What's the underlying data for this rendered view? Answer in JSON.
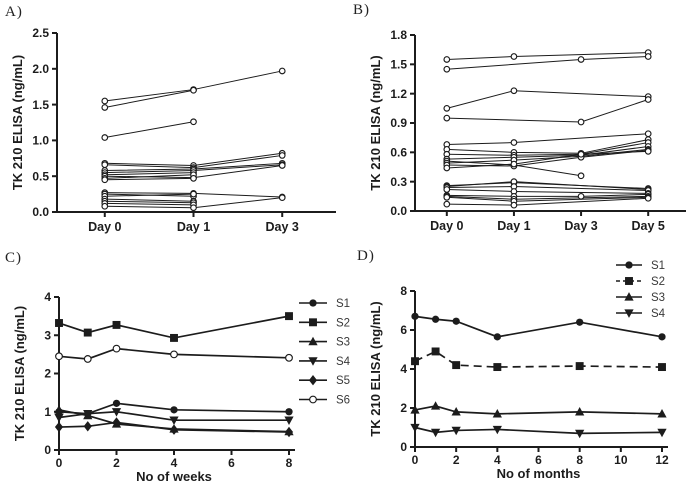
{
  "figure": {
    "colors": {
      "ink": "#1c1c1c",
      "legend_text": "#3a3a3a",
      "open_marker_fill": "#ffffff"
    }
  },
  "chart_data": [
    {
      "panel_label": "A)",
      "type": "line",
      "title": "",
      "ylabel": "TK 210 ELISA (ng/mL)",
      "xlabel": "",
      "ylim": [
        0,
        2.5
      ],
      "ytick_vals": [
        0,
        0.5,
        1.0,
        1.5,
        2.0,
        2.5
      ],
      "ytick_labels": [
        "0.0",
        "0.5",
        "1.0",
        "1.5",
        "2.0",
        "2.5"
      ],
      "x_type": "categorical",
      "categories": [
        "Day 0",
        "Day 1",
        "Day 3"
      ],
      "marker_default": "open-circle",
      "legend": false,
      "series": [
        {
          "values": [
            1.55,
            1.71,
            1.97
          ]
        },
        {
          "values": [
            1.46,
            1.7,
            null
          ]
        },
        {
          "values": [
            1.04,
            1.26,
            null
          ]
        },
        {
          "values": [
            0.68,
            0.65,
            0.82
          ]
        },
        {
          "values": [
            0.66,
            0.62,
            0.79
          ]
        },
        {
          "values": [
            0.58,
            0.6,
            0.68
          ]
        },
        {
          "values": [
            0.55,
            0.58,
            0.66
          ]
        },
        {
          "values": [
            0.52,
            0.55,
            null
          ]
        },
        {
          "values": [
            0.5,
            0.48,
            0.65
          ]
        },
        {
          "values": [
            0.47,
            0.52,
            null
          ]
        },
        {
          "values": [
            0.45,
            0.47,
            null
          ]
        },
        {
          "values": [
            0.27,
            0.26,
            0.21
          ]
        },
        {
          "values": [
            0.25,
            0.22,
            null
          ]
        },
        {
          "values": [
            0.22,
            0.25,
            null
          ]
        },
        {
          "values": [
            0.18,
            0.15,
            null
          ]
        },
        {
          "values": [
            0.15,
            0.13,
            null
          ]
        },
        {
          "values": [
            0.12,
            0.1,
            null
          ]
        },
        {
          "values": [
            0.08,
            0.06,
            0.2
          ]
        }
      ]
    },
    {
      "panel_label": "B)",
      "type": "line",
      "title": "",
      "ylabel": "TK 210 ELISA (ng/mL)",
      "xlabel": "",
      "ylim": [
        0,
        1.8
      ],
      "ytick_vals": [
        0,
        0.3,
        0.6,
        0.9,
        1.2,
        1.5,
        1.8
      ],
      "ytick_labels": [
        "0.0",
        "0.3",
        "0.6",
        "0.9",
        "1.2",
        "1.5",
        "1.8"
      ],
      "x_type": "categorical",
      "categories": [
        "Day 0",
        "Day 1",
        "Day 3",
        "Day 5"
      ],
      "marker_default": "open-circle",
      "legend": false,
      "series": [
        {
          "values": [
            1.55,
            1.58,
            null,
            1.62
          ]
        },
        {
          "values": [
            1.45,
            null,
            1.55,
            1.58
          ]
        },
        {
          "values": [
            1.05,
            1.23,
            null,
            1.17
          ]
        },
        {
          "values": [
            0.95,
            null,
            0.91,
            1.14
          ]
        },
        {
          "values": [
            0.68,
            0.7,
            null,
            0.79
          ]
        },
        {
          "values": [
            0.63,
            0.6,
            0.59,
            0.73
          ]
        },
        {
          "values": [
            0.58,
            0.57,
            0.58,
            0.7
          ]
        },
        {
          "values": [
            0.53,
            0.55,
            0.57,
            0.66
          ]
        },
        {
          "values": [
            0.51,
            0.47,
            0.36,
            null
          ]
        },
        {
          "values": [
            0.49,
            0.52,
            0.56,
            0.63
          ]
        },
        {
          "values": [
            0.47,
            0.46,
            0.55,
            0.62
          ]
        },
        {
          "values": [
            0.44,
            0.48,
            0.58,
            0.61
          ]
        },
        {
          "values": [
            0.26,
            0.29,
            null,
            0.23
          ]
        },
        {
          "values": [
            0.25,
            0.3,
            null,
            0.22
          ]
        },
        {
          "values": [
            0.24,
            0.25,
            null,
            0.21
          ]
        },
        {
          "values": [
            0.22,
            0.2,
            null,
            0.18
          ]
        },
        {
          "values": [
            0.16,
            0.15,
            0.15,
            0.17
          ]
        },
        {
          "values": [
            0.15,
            0.12,
            null,
            0.15
          ]
        },
        {
          "values": [
            0.14,
            0.1,
            null,
            0.14
          ]
        },
        {
          "values": [
            0.07,
            0.06,
            null,
            0.13
          ]
        }
      ]
    },
    {
      "panel_label": "C)",
      "type": "line",
      "title": "",
      "ylabel": "TK 210 ELISA (ng/mL)",
      "xlabel": "No of weeks",
      "ylim": [
        0,
        4
      ],
      "ytick_vals": [
        0,
        1,
        2,
        3,
        4
      ],
      "ytick_labels": [
        "0",
        "1",
        "2",
        "3",
        "4"
      ],
      "x_type": "numeric",
      "xlim": [
        0,
        8
      ],
      "xtick_vals": [
        0,
        2,
        4,
        6,
        8
      ],
      "xtick_labels": [
        "0",
        "2",
        "4",
        "6",
        "8"
      ],
      "legend": true,
      "legend_position": "right",
      "series": [
        {
          "name": "S1",
          "marker": "filled-circle",
          "x": [
            0,
            1,
            2,
            4,
            8
          ],
          "values": [
            1.0,
            0.95,
            1.22,
            1.05,
            1.0
          ]
        },
        {
          "name": "S2",
          "marker": "filled-square",
          "x": [
            0,
            1,
            2,
            4,
            8
          ],
          "values": [
            3.32,
            3.07,
            3.27,
            2.93,
            3.5
          ]
        },
        {
          "name": "S3",
          "marker": "filled-triangle-up",
          "x": [
            0,
            1,
            2,
            4,
            8
          ],
          "values": [
            1.05,
            0.9,
            0.68,
            0.55,
            0.48
          ]
        },
        {
          "name": "S4",
          "marker": "filled-triangle-down",
          "x": [
            0,
            1,
            2,
            4,
            8
          ],
          "values": [
            0.85,
            0.95,
            1.0,
            0.78,
            0.78
          ]
        },
        {
          "name": "S5",
          "marker": "filled-diamond",
          "x": [
            0,
            1,
            2,
            4,
            8
          ],
          "values": [
            0.6,
            0.62,
            0.72,
            0.53,
            0.47
          ]
        },
        {
          "name": "S6",
          "marker": "open-circle",
          "x": [
            0,
            1,
            2,
            4,
            8
          ],
          "values": [
            2.45,
            2.38,
            2.65,
            2.5,
            2.41
          ]
        }
      ]
    },
    {
      "panel_label": "D)",
      "type": "line",
      "title": "",
      "ylabel": "TK 210 ELISA (ng/mL)",
      "xlabel": "No of months",
      "ylim": [
        0,
        8
      ],
      "ytick_vals": [
        0,
        2,
        4,
        6,
        8
      ],
      "ytick_labels": [
        "0",
        "2",
        "4",
        "6",
        "8"
      ],
      "x_type": "numeric",
      "xlim": [
        0,
        12
      ],
      "xtick_vals": [
        0,
        2,
        4,
        6,
        8,
        10,
        12
      ],
      "xtick_labels": [
        "0",
        "2",
        "4",
        "6",
        "8",
        "10",
        "12"
      ],
      "legend": true,
      "legend_position": "top-right",
      "series": [
        {
          "name": "S1",
          "marker": "filled-circle",
          "x": [
            0,
            1,
            2,
            4,
            8,
            12
          ],
          "values": [
            6.7,
            6.55,
            6.45,
            5.65,
            6.4,
            5.65
          ]
        },
        {
          "name": "S2",
          "marker": "filled-square",
          "dash": true,
          "x": [
            0,
            1,
            2,
            4,
            8,
            12
          ],
          "values": [
            4.4,
            4.9,
            4.2,
            4.1,
            4.15,
            4.1
          ]
        },
        {
          "name": "S3",
          "marker": "filled-triangle-up",
          "x": [
            0,
            1,
            2,
            4,
            8,
            12
          ],
          "values": [
            1.9,
            2.1,
            1.8,
            1.7,
            1.8,
            1.7
          ]
        },
        {
          "name": "S4",
          "marker": "filled-triangle-down",
          "x": [
            0,
            1,
            2,
            4,
            8,
            12
          ],
          "values": [
            1.0,
            0.75,
            0.85,
            0.9,
            0.7,
            0.75
          ]
        }
      ]
    }
  ]
}
